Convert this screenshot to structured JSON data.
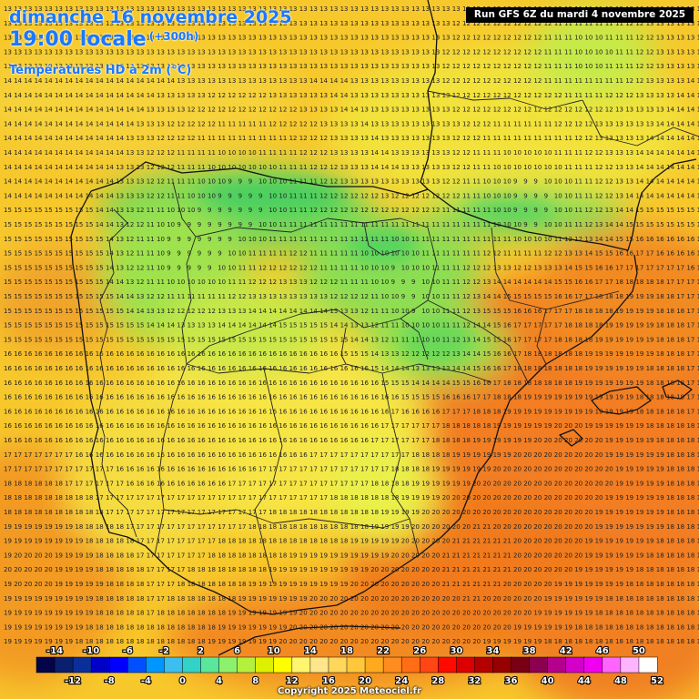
{
  "header": {
    "date_line": "dimanche 16 novembre 2025",
    "time_line": "19:00 locale",
    "lead_time": "(+300h)",
    "variable_line": "Températures HD à 2m (°C)",
    "run_info": "Run GFS 6Z du mardi 4 novembre 2025"
  },
  "footer": {
    "copyright": "Copyright 2025 Meteociel.fr"
  },
  "legend": {
    "top_labels": [
      "-14",
      "-10",
      "-6",
      "-2",
      "2",
      "6",
      "10",
      "14",
      "18",
      "22",
      "26",
      "30",
      "34",
      "38",
      "42",
      "46",
      "50"
    ],
    "bottom_labels": [
      "-12",
      "-8",
      "-4",
      "0",
      "4",
      "8",
      "12",
      "16",
      "20",
      "24",
      "28",
      "32",
      "36",
      "40",
      "44",
      "48",
      "52"
    ],
    "colors": [
      "#04044a",
      "#0a1f6e",
      "#0b2f9a",
      "#0000c8",
      "#0000ff",
      "#0050ff",
      "#0096ff",
      "#3cbef0",
      "#32d2c8",
      "#5ae69b",
      "#8cf26e",
      "#b4f03c",
      "#dcf000",
      "#ffff00",
      "#fff56e",
      "#ffe68c",
      "#ffd75a",
      "#ffc83c",
      "#ffaa1e",
      "#ff8c1e",
      "#ff6e14",
      "#ff4614",
      "#ff0a00",
      "#dc0000",
      "#b40000",
      "#960000",
      "#780014",
      "#8c0050",
      "#b4008c",
      "#d200c8",
      "#f000f0",
      "#ff64ff",
      "#ffb4ff",
      "#ffffff"
    ]
  },
  "colors": {
    "country_border": "#111111",
    "region_border": "#333333",
    "grid_text": "#222222"
  }
}
